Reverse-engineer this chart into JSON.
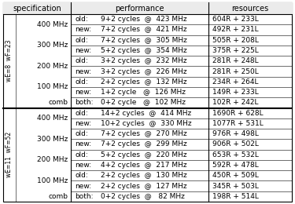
{
  "col_headers": [
    "specification",
    "performance",
    "resources"
  ],
  "section1_label": "wE=8  wF=23",
  "section2_label": "wE=11  wF=52",
  "rows": [
    {
      "spec": "400 MHz",
      "old_new": "old:",
      "perf": "9+2 cycles  @  423 MHz",
      "res": "604R + 233L",
      "section": 1
    },
    {
      "spec": "",
      "old_new": "new:",
      "perf": "7+2 cycles  @  421 MHz",
      "res": "492R + 231L",
      "section": 1
    },
    {
      "spec": "300 MHz",
      "old_new": "old:",
      "perf": "7+2 cycles  @  305 MHz",
      "res": "505R + 208L",
      "section": 1
    },
    {
      "spec": "",
      "old_new": "new:",
      "perf": "5+2 cycles  @  354 MHz",
      "res": "375R + 225L",
      "section": 1
    },
    {
      "spec": "200 MHz",
      "old_new": "old:",
      "perf": "3+2 cycles  @  232 MHz",
      "res": "281R + 248L",
      "section": 1
    },
    {
      "spec": "",
      "old_new": "new:",
      "perf": "3+2 cycles  @  226 MHz",
      "res": "281R + 250L",
      "section": 1
    },
    {
      "spec": "100 MHz",
      "old_new": "old:",
      "perf": "2+2 cycles  @  132 MHz",
      "res": "234R + 264L",
      "section": 1
    },
    {
      "spec": "",
      "old_new": "new:",
      "perf": "1+2 cycle   @  126 MHz",
      "res": "149R + 233L",
      "section": 1
    },
    {
      "spec": "comb",
      "old_new": "both:",
      "perf": "0+2 cycle   @  102 MHz",
      "res": "102R + 242L",
      "section": 1
    },
    {
      "spec": "400 MHz",
      "old_new": "old:",
      "perf": "14+2 cycles  @  414 MHz",
      "res": "1690R + 628L",
      "section": 2
    },
    {
      "spec": "",
      "old_new": "new:",
      "perf": "10+2 cycles  @  330 MHz",
      "res": "1077R + 531L",
      "section": 2
    },
    {
      "spec": "300 MHz",
      "old_new": "old:",
      "perf": "7+2 cycles  @  270 MHz",
      "res": "976R + 498L",
      "section": 2
    },
    {
      "spec": "",
      "old_new": "new:",
      "perf": "7+2 cycles  @  299 MHz",
      "res": "906R + 502L",
      "section": 2
    },
    {
      "spec": "200 MHz",
      "old_new": "old:",
      "perf": "5+2 cycles  @  220 MHz",
      "res": "653R + 532L",
      "section": 2
    },
    {
      "spec": "",
      "old_new": "new:",
      "perf": "4+2 cycles  @  217 MHz",
      "res": "592R + 478L",
      "section": 2
    },
    {
      "spec": "100 MHz",
      "old_new": "old:",
      "perf": "2+2 cycles  @  130 MHz",
      "res": "450R + 509L",
      "section": 2
    },
    {
      "spec": "",
      "old_new": "new:",
      "perf": "2+2 cycles  @  127 MHz",
      "res": "345R + 503L",
      "section": 2
    },
    {
      "spec": "comb",
      "old_new": "both:",
      "perf": "0+2 cycles  @   82 MHz",
      "res": "198R + 514L",
      "section": 2
    }
  ],
  "spec_groups_1": [
    {
      "label": "400 MHz",
      "rows": [
        0,
        1
      ]
    },
    {
      "label": "300 MHz",
      "rows": [
        2,
        3
      ]
    },
    {
      "label": "200 MHz",
      "rows": [
        4,
        5
      ]
    },
    {
      "label": "100 MHz",
      "rows": [
        6,
        7
      ]
    },
    {
      "label": "comb",
      "rows": [
        8
      ]
    }
  ],
  "spec_groups_2": [
    {
      "label": "400 MHz",
      "rows": [
        0,
        1
      ]
    },
    {
      "label": "300 MHz",
      "rows": [
        2,
        3
      ]
    },
    {
      "label": "200 MHz",
      "rows": [
        4,
        5
      ]
    },
    {
      "label": "100 MHz",
      "rows": [
        6,
        7
      ]
    },
    {
      "label": "comb",
      "rows": [
        8
      ]
    }
  ]
}
